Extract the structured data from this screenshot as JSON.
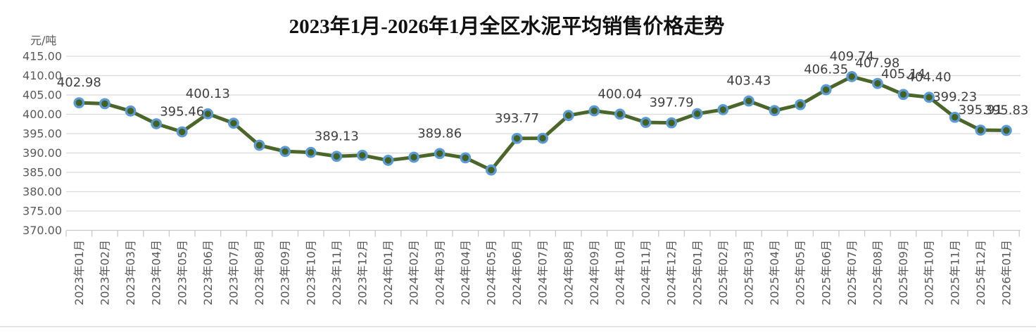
{
  "page": {
    "background": "#ffffff"
  },
  "chart_data": {
    "type": "line",
    "title": "2023年1月-2026年1月全区水泥平均销售价格走势",
    "unit_label": "元/吨",
    "legend": "none",
    "grid": true,
    "ylim": [
      370,
      415
    ],
    "ytick_step": 5,
    "categories": [
      "2023年01月",
      "2023年02月",
      "2023年03月",
      "2023年04月",
      "2023年05月",
      "2023年06月",
      "2023年07月",
      "2023年08月",
      "2023年09月",
      "2023年10月",
      "2023年11月",
      "2023年12月",
      "2024年01月",
      "2024年02月",
      "2024年03月",
      "2024年04月",
      "2024年05月",
      "2024年06月",
      "2024年07月",
      "2024年08月",
      "2024年09月",
      "2024年10月",
      "2024年11月",
      "2024年12月",
      "2025年01月",
      "2025年02月",
      "2025年03月",
      "2025年04月",
      "2025年05月",
      "2025年06月",
      "2025年07月",
      "2025年08月",
      "2025年09月",
      "2025年10月",
      "2025年11月",
      "2025年12月",
      "2026年01月"
    ],
    "series": [
      {
        "name": "全区水泥平均销售价格",
        "values": [
          402.98,
          402.75,
          400.85,
          397.55,
          395.46,
          400.13,
          397.7,
          392.0,
          390.4,
          390.15,
          389.13,
          389.4,
          388.1,
          388.9,
          389.86,
          388.75,
          385.6,
          393.77,
          393.8,
          399.7,
          400.9,
          400.04,
          397.9,
          397.79,
          400.15,
          401.2,
          403.43,
          400.95,
          402.5,
          406.35,
          409.74,
          407.98,
          405.14,
          404.4,
          399.23,
          395.91,
          395.83
        ]
      }
    ],
    "point_labels": {
      "0": "402.98",
      "4": "395.46",
      "5": "400.13",
      "10": "389.13",
      "14": "389.86",
      "17": "393.77",
      "21": "400.04",
      "23": "397.79",
      "26": "403.43",
      "29": "406.35",
      "30": "409.74",
      "31": "407.98",
      "32": "405.14",
      "33": "404.40",
      "34": "399.23",
      "35": "395.91",
      "36": "395.83"
    },
    "colors": {
      "line": "#4a6628",
      "marker_fill": "#436125",
      "marker_ring": "#5b9bd5",
      "grid": "#d9d9d9",
      "axis": "#c9c9c9",
      "axis_text": "#595959",
      "data_label_text": "#404040",
      "title_text": "#111111"
    }
  }
}
